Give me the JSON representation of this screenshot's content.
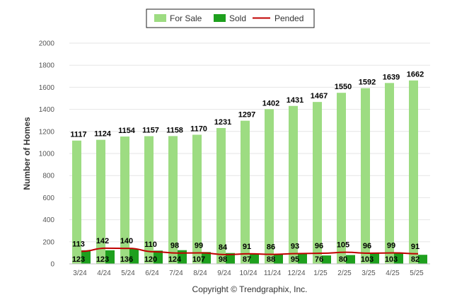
{
  "chart_data": {
    "type": "bar",
    "ylabel": "Number of Homes",
    "ylim": [
      0,
      2000
    ],
    "yticks": [
      0,
      200,
      400,
      600,
      800,
      1000,
      1200,
      1400,
      1600,
      1800,
      2000
    ],
    "categories": [
      "3/24",
      "4/24",
      "5/24",
      "6/24",
      "7/24",
      "8/24",
      "9/24",
      "10/24",
      "11/24",
      "12/24",
      "1/25",
      "2/25",
      "3/25",
      "4/25",
      "5/25"
    ],
    "series": [
      {
        "name": "For Sale",
        "type": "bar",
        "color": "#9ddc82",
        "values": [
          1117,
          1124,
          1154,
          1157,
          1158,
          1170,
          1231,
          1297,
          1402,
          1431,
          1467,
          1550,
          1592,
          1639,
          1662
        ]
      },
      {
        "name": "Sold",
        "type": "bar",
        "color": "#1ea01e",
        "values": [
          123,
          123,
          136,
          120,
          124,
          107,
          98,
          87,
          88,
          95,
          76,
          80,
          103,
          103,
          82
        ]
      },
      {
        "name": "Pended",
        "type": "line",
        "color": "#c00000",
        "values": [
          113,
          142,
          140,
          110,
          98,
          99,
          84,
          91,
          86,
          93,
          96,
          105,
          96,
          99,
          91
        ]
      }
    ],
    "legend_position": "top",
    "grid": true,
    "credit": "Copyright © Trendgraphix, Inc."
  }
}
